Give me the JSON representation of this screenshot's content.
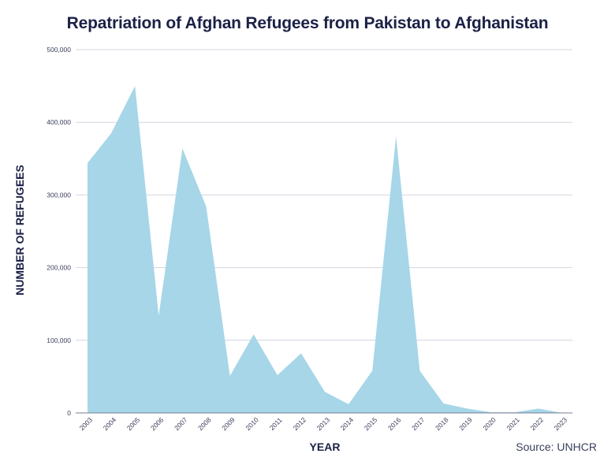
{
  "chart_data": {
    "type": "area",
    "title": "Repatriation of Afghan Refugees from Pakistan to Afghanistan",
    "xlabel": "YEAR",
    "ylabel": "NUMBER OF REFUGEES",
    "source": "Source: UNHCR",
    "ylim": [
      0,
      500000
    ],
    "yticks": [
      0,
      100000,
      200000,
      300000,
      400000,
      500000
    ],
    "ytick_labels": [
      "0",
      "100,000",
      "200,000",
      "300,000",
      "400,000",
      "500,000"
    ],
    "grid": true,
    "fill_color": "#a6d6e8",
    "categories": [
      "2003",
      "2004",
      "2005",
      "2006",
      "2007",
      "2008",
      "2009",
      "2010",
      "2011",
      "2012",
      "2013",
      "2014",
      "2015",
      "2016",
      "2017",
      "2018",
      "2019",
      "2020",
      "2021",
      "2022",
      "2023"
    ],
    "series": [
      {
        "name": "Repatriated refugees",
        "values": [
          344000,
          385000,
          450000,
          134000,
          364000,
          284000,
          51000,
          108000,
          52000,
          82000,
          29000,
          12000,
          58000,
          381000,
          58000,
          13000,
          6000,
          1000,
          1000,
          6000,
          0
        ]
      }
    ]
  }
}
